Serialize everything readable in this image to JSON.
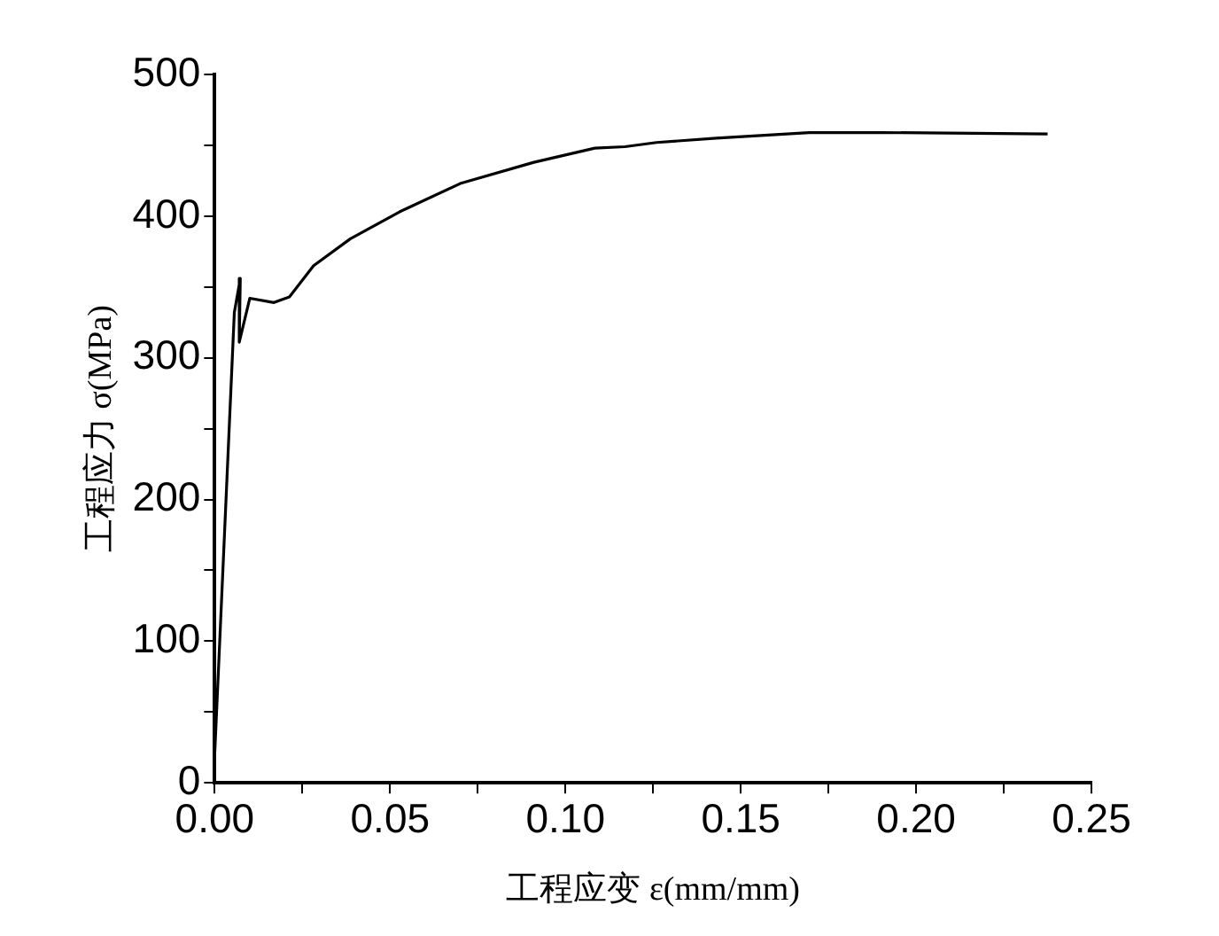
{
  "chart_data": {
    "type": "line",
    "xlabel": "工程应变 ε(mm/mm)",
    "ylabel": "工程应力 σ(MPa)",
    "series": [
      {
        "color": "#000000",
        "x": [
          0,
          0.0056,
          0.0073,
          0.007,
          0.01,
          0.0169,
          0.0213,
          0.0282,
          0.0387,
          0.0527,
          0.07,
          0.091,
          0.1084,
          0.117,
          0.126,
          0.143,
          0.1695,
          0.19,
          0.2375
        ],
        "values": [
          20,
          332,
          356,
          311,
          342,
          339,
          343,
          365,
          384,
          403,
          423,
          438,
          448,
          449,
          452,
          455,
          459,
          459,
          458
        ]
      }
    ],
    "xlim": [
      0,
      0.25
    ],
    "xticks": [
      {
        "value": 0,
        "label": "0.00"
      },
      {
        "value": 0.025,
        "label": null
      },
      {
        "value": 0.05,
        "label": "0.05"
      },
      {
        "value": 0.075,
        "label": null
      },
      {
        "value": 0.1,
        "label": "0.10"
      },
      {
        "value": 0.125,
        "label": null
      },
      {
        "value": 0.15,
        "label": "0.15"
      },
      {
        "value": 0.175,
        "label": null
      },
      {
        "value": 0.2,
        "label": "0.20"
      },
      {
        "value": 0.225,
        "label": null
      },
      {
        "value": 0.25,
        "label": "0.25"
      }
    ],
    "ylim": [
      0,
      500
    ],
    "yticks": [
      0,
      {
        "value": 50,
        "label": null
      },
      100,
      {
        "value": 150,
        "label": null
      },
      200,
      {
        "value": 250,
        "label": null
      },
      300,
      {
        "value": 350,
        "label": null
      },
      400,
      {
        "value": 450,
        "label": null
      },
      500
    ],
    "grid": false,
    "legend": false,
    "marker": "none",
    "line_style": "solid"
  }
}
